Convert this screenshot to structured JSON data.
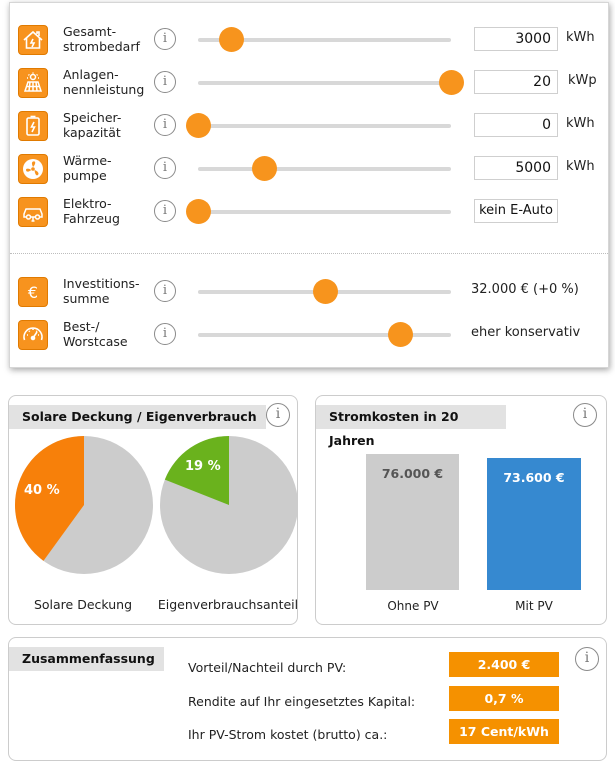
{
  "inputs": [
    {
      "key": "strombedarf",
      "label": "Gesamt-\nstrombedarf",
      "icon": "house-icon",
      "value": "3000",
      "unit": "kWh",
      "slider_fraction": 0.13
    },
    {
      "key": "anlage",
      "label": "Anlagen-\nnennleistung",
      "icon": "solar-panel-icon",
      "value": "20",
      "unit": "kWp",
      "slider_fraction": 1.0
    },
    {
      "key": "speicher",
      "label": "Speicher-\nkapazität",
      "icon": "battery-icon",
      "value": "0",
      "unit": "kWh",
      "slider_fraction": 0.0
    },
    {
      "key": "waerme",
      "label": "Wärme-\npumpe",
      "icon": "fan-icon",
      "value": "5000",
      "unit": "kWh",
      "slider_fraction": 0.26
    },
    {
      "key": "auto",
      "label": "Elektro-\nFahrzeug",
      "icon": "car-icon",
      "value": "kein E-Auto",
      "slider_fraction": 0.0
    },
    {
      "key": "invest",
      "label": "Investitions-\nsumme",
      "icon": "euro-icon",
      "value": "32.000 € (+0 %)",
      "slider_fraction": 0.5
    },
    {
      "key": "case",
      "label": "Best-/\nWorstcase",
      "icon": "gauge-icon",
      "value": "eher konservativ",
      "slider_fraction": 0.8
    }
  ],
  "info_glyph": "i",
  "deckung_card": {
    "title": "Solare Deckung / Eigenverbrauch",
    "pies": [
      {
        "label": "Solare Deckung",
        "value_label": "40 %",
        "value": 40,
        "color": "#f7800a"
      },
      {
        "label": "Eigenverbrauchsanteil",
        "value_label": "19 %",
        "value": 19,
        "color": "#6ab21d"
      }
    ],
    "pie_rest_color": "#cccccc"
  },
  "kosten_card": {
    "title": "Stromkosten in 20 Jahren",
    "bars": [
      {
        "label": "Ohne PV",
        "value_label": "76.000 €",
        "value": 76000,
        "color": "#cccccc",
        "text_color": "#555555"
      },
      {
        "label": "Mit PV",
        "value_label": "73.600 €",
        "value": 73600,
        "color": "#3689d0",
        "text_color": "#ffffff"
      }
    ]
  },
  "summary": {
    "title": "Zusammenfassung",
    "rows": [
      {
        "label": "Vorteil/Nachteil durch PV:",
        "value": "2.400 €"
      },
      {
        "label": "Rendite auf Ihr eingesetztes Kapital:",
        "value": "0,7 %"
      },
      {
        "label": "Ihr PV-Strom kostet (brutto) ca.:",
        "value": "17 Cent/kWh"
      }
    ]
  },
  "colors": {
    "accent": "#f7941d",
    "badge": "#f59100"
  }
}
